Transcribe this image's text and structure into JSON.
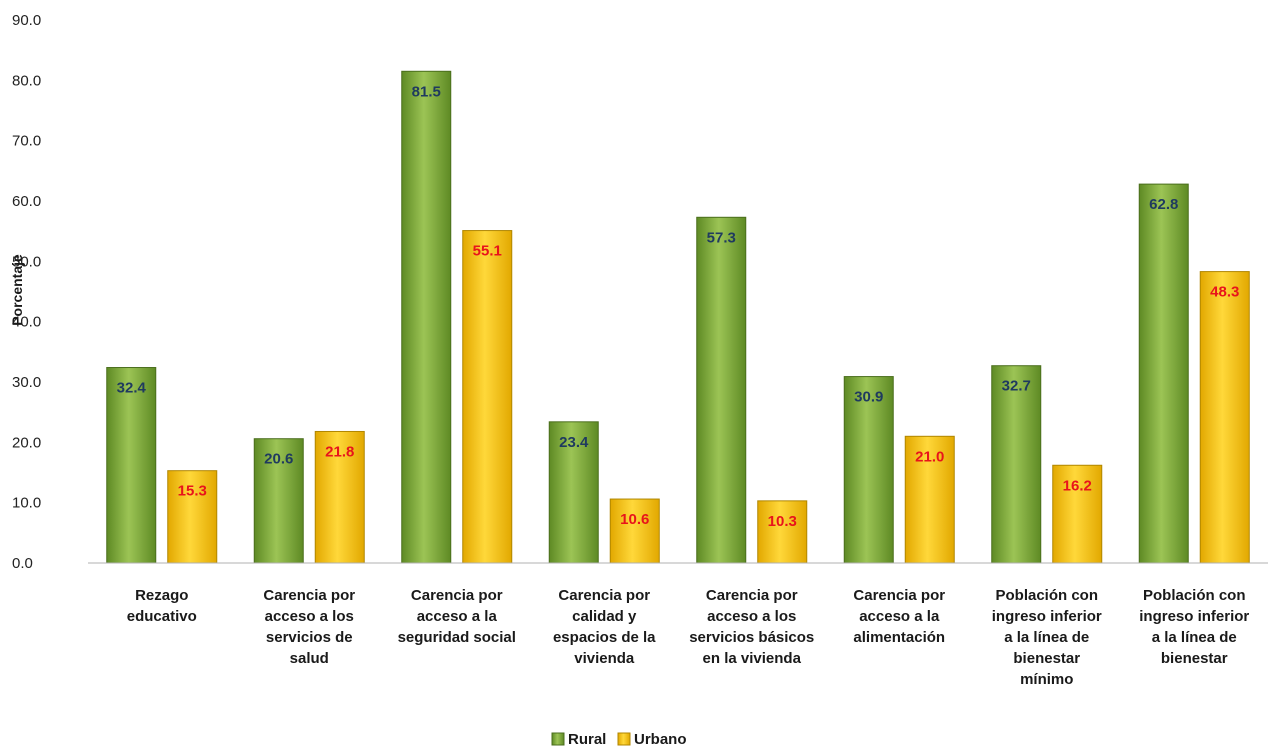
{
  "chart_data": {
    "type": "bar",
    "title": "",
    "xlabel": "",
    "ylabel": "Porcentaje",
    "ylim": [
      0,
      90
    ],
    "yticks": [
      "0.0",
      "10.0",
      "20.0",
      "30.0",
      "40.0",
      "50.0",
      "60.0",
      "70.0",
      "80.0",
      "90.0"
    ],
    "grid": false,
    "legend_position": "bottom",
    "categories": [
      [
        "Rezago",
        "educativo"
      ],
      [
        "Carencia por",
        "acceso a los",
        "servicios de",
        "salud"
      ],
      [
        "Carencia por",
        "acceso a la",
        "seguridad social"
      ],
      [
        "Carencia por",
        "calidad y",
        "espacios de la",
        "vivienda"
      ],
      [
        "Carencia por",
        "acceso a los",
        "servicios básicos",
        "en la vivienda"
      ],
      [
        "Carencia por",
        "acceso a la",
        "alimentación"
      ],
      [
        "Población con",
        "ingreso inferior",
        "a la línea de",
        "bienestar",
        "mínimo"
      ],
      [
        "Población con",
        "ingreso inferior",
        "a la línea de",
        "bienestar"
      ]
    ],
    "series": [
      {
        "name": "Rural",
        "values": [
          32.4,
          20.6,
          81.5,
          23.4,
          57.3,
          30.9,
          32.7,
          62.8
        ],
        "labels": [
          "32.4",
          "20.6",
          "81.5",
          "23.4",
          "57.3",
          "30.9",
          "32.7",
          "62.8"
        ],
        "color": "#7aa33a",
        "label_color": "#1f3a5f"
      },
      {
        "name": "Urbano",
        "values": [
          15.3,
          21.8,
          55.1,
          10.6,
          10.3,
          21.0,
          16.2,
          48.3
        ],
        "labels": [
          "15.3",
          "21.8",
          "55.1",
          "10.6",
          "10.3",
          "21.0",
          "16.2",
          "48.3"
        ],
        "color": "#f5c000",
        "label_color": "#e8141b"
      }
    ]
  }
}
